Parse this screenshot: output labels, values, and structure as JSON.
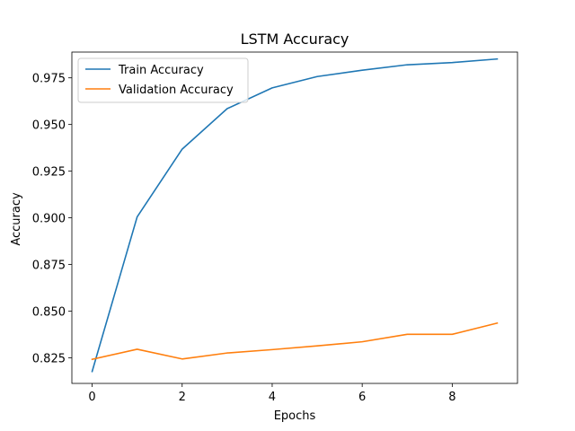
{
  "chart_data": {
    "type": "line",
    "title": "LSTM Accuracy",
    "xlabel": "Epochs",
    "ylabel": "Accuracy",
    "x": [
      0,
      1,
      2,
      3,
      4,
      5,
      6,
      7,
      8,
      9
    ],
    "xlim": [
      -0.45,
      9.45
    ],
    "ylim": [
      0.8113,
      0.9888
    ],
    "xticks": [
      0,
      2,
      4,
      6,
      8
    ],
    "xtick_labels": [
      "0",
      "2",
      "4",
      "6",
      "8"
    ],
    "yticks": [
      0.825,
      0.85,
      0.875,
      0.9,
      0.925,
      0.95,
      0.975
    ],
    "ytick_labels": [
      "0.825",
      "0.850",
      "0.875",
      "0.900",
      "0.925",
      "0.950",
      "0.975"
    ],
    "grid": false,
    "legend_position": "upper-left",
    "series": [
      {
        "name": "Train Accuracy",
        "color": "#1f77b4",
        "values": [
          0.8177,
          0.9005,
          0.9368,
          0.9585,
          0.9696,
          0.9757,
          0.9791,
          0.982,
          0.9832,
          0.9851
        ]
      },
      {
        "name": "Validation Accuracy",
        "color": "#ff7f0e",
        "values": [
          0.8242,
          0.8296,
          0.8244,
          0.8276,
          0.8294,
          0.8314,
          0.8336,
          0.8376,
          0.8376,
          0.8436
        ]
      }
    ]
  }
}
